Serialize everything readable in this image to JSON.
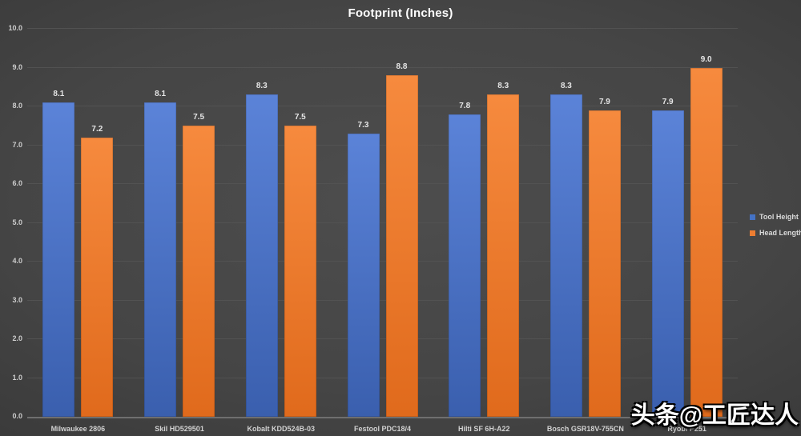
{
  "watermark": "头条@工匠达人",
  "chart_data": {
    "type": "bar",
    "title": "Footprint (Inches)",
    "categories": [
      "Milwaukee 2806",
      "Skil HD529501",
      "Kobalt KDD524B-03",
      "Festool PDC18/4",
      "Hilti SF 6H-A22",
      "Bosch GSR18V-755CN",
      "Ryobi P251"
    ],
    "series": [
      {
        "name": "Tool Height",
        "color": "#4472C4",
        "gradient": [
          "#5b83d8",
          "#3a5fae"
        ],
        "values": [
          8.1,
          8.1,
          8.3,
          7.3,
          7.8,
          8.3,
          7.9
        ]
      },
      {
        "name": "Head Length",
        "color": "#ED7D31",
        "gradient": [
          "#f68a3e",
          "#e06a1c"
        ],
        "values": [
          7.2,
          7.5,
          7.5,
          8.8,
          8.3,
          7.9,
          9.0
        ]
      }
    ],
    "ylim": [
      0,
      10
    ],
    "ytick_step": 1,
    "ytick_labels": [
      "0.0",
      "1.0",
      "2.0",
      "3.0",
      "4.0",
      "5.0",
      "6.0",
      "7.0",
      "8.0",
      "9.0",
      "10.0"
    ],
    "grid": true,
    "value_labels": true,
    "legend_position": "right",
    "background": "#3f3f3f",
    "gridline_color": "#525252",
    "axis_line_color": "#6f6f6f"
  }
}
